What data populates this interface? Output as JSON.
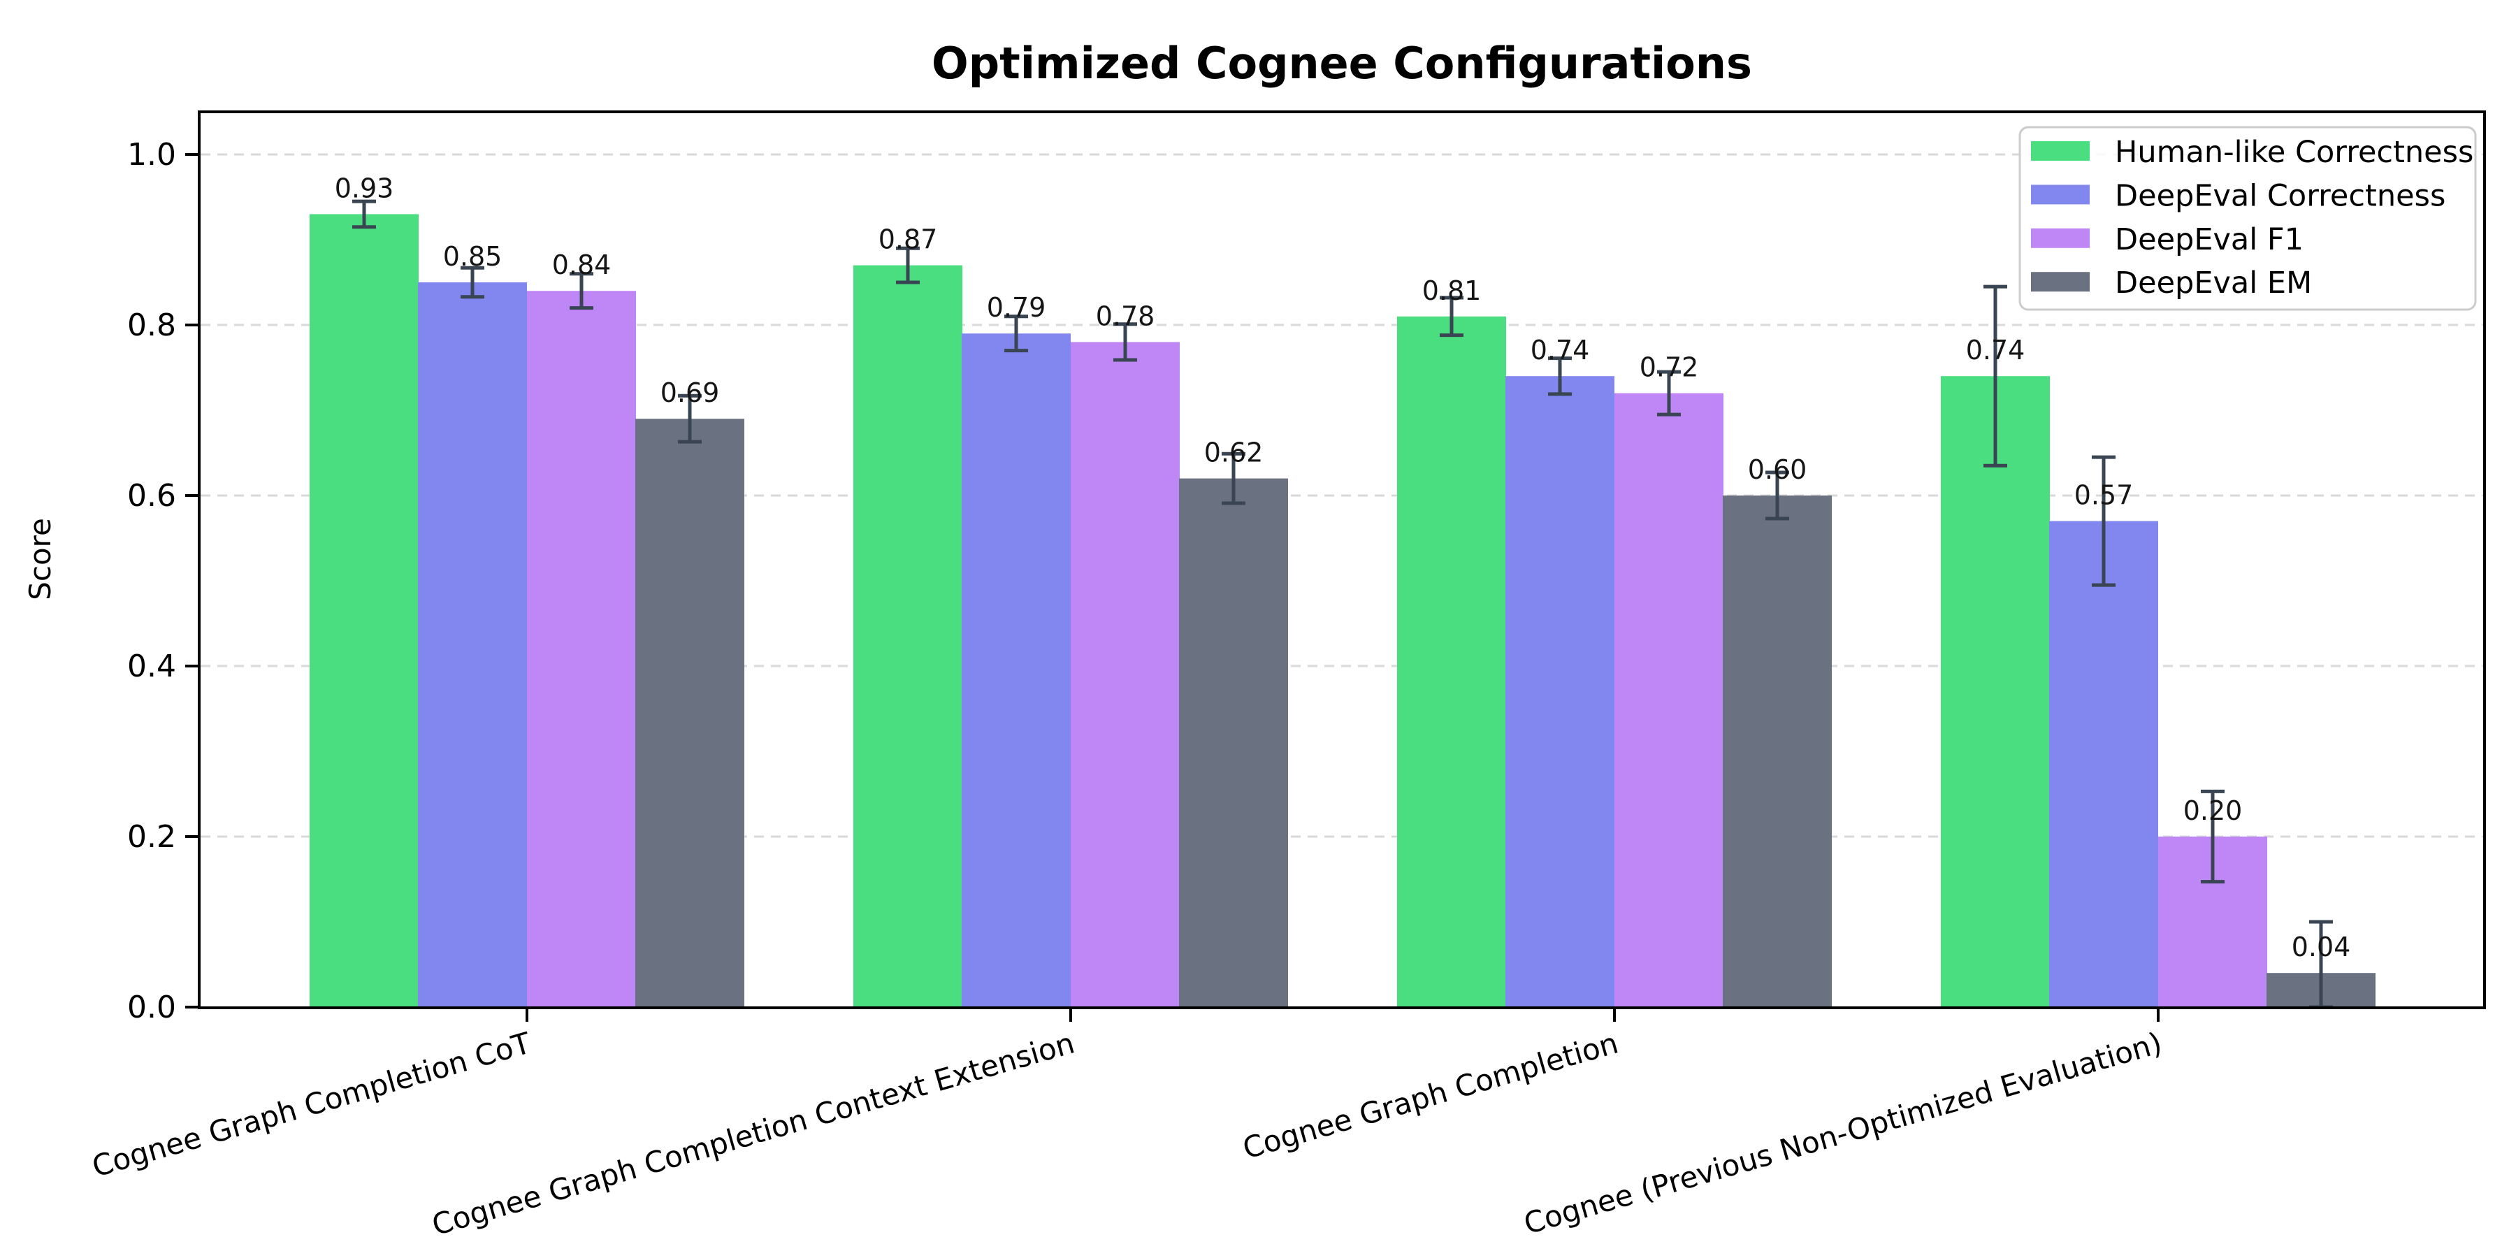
{
  "figure": {
    "title": "Optimized Cognee Configurations"
  },
  "chart_data": {
    "type": "bar",
    "title": "Optimized Cognee Configurations",
    "xlabel": "",
    "ylabel": "Score",
    "categories": [
      "Cognee Graph Completion CoT",
      "Cognee Graph Completion Context Extension",
      "Cognee Graph Completion",
      "Cognee (Previous Non-Optimized Evaluation)"
    ],
    "series": [
      {
        "name": "Human-like Correctness",
        "color": "#4ade80",
        "values": [
          0.93,
          0.87,
          0.81,
          0.74
        ],
        "errors": [
          0.015,
          0.02,
          0.022,
          0.105
        ],
        "value_labels": [
          "0.93",
          "0.87",
          "0.81",
          "0.74"
        ]
      },
      {
        "name": "DeepEval Correctness",
        "color": "#8187ee",
        "values": [
          0.85,
          0.79,
          0.74,
          0.57
        ],
        "errors": [
          0.017,
          0.02,
          0.021,
          0.075
        ],
        "value_labels": [
          "0.85",
          "0.79",
          "0.74",
          "0.57"
        ]
      },
      {
        "name": "DeepEval F1",
        "color": "#bf86f5",
        "values": [
          0.84,
          0.78,
          0.72,
          0.2
        ],
        "errors": [
          0.02,
          0.021,
          0.025,
          0.053
        ],
        "value_labels": [
          "0.84",
          "0.78",
          "0.72",
          "0.20"
        ]
      },
      {
        "name": "DeepEval EM",
        "color": "#6a7181",
        "values": [
          0.69,
          0.62,
          0.6,
          0.04
        ],
        "errors": [
          0.027,
          0.029,
          0.027,
          0.06
        ],
        "value_labels": [
          "0.69",
          "0.62",
          "0.60",
          "0.04"
        ]
      }
    ],
    "ytick_labels": [
      "0.0",
      "0.2",
      "0.4",
      "0.6",
      "0.8",
      "1.0"
    ],
    "yticks": [
      0.0,
      0.2,
      0.4,
      0.6,
      0.8,
      1.0
    ],
    "ylim": [
      0.0,
      1.05
    ],
    "grid": "horizontal-dashed",
    "legend_position": "upper right"
  },
  "colors": {
    "bar_green": "#4ade80",
    "bar_blue": "#8187ee",
    "bar_purple": "#bf86f5",
    "bar_gray": "#6a7181",
    "error_bar": "#3a4553",
    "gridline": "#d9d9d9",
    "axis": "#000000",
    "value_label": "#151515",
    "legend_border": "#cccccc",
    "background": "#ffffff"
  }
}
